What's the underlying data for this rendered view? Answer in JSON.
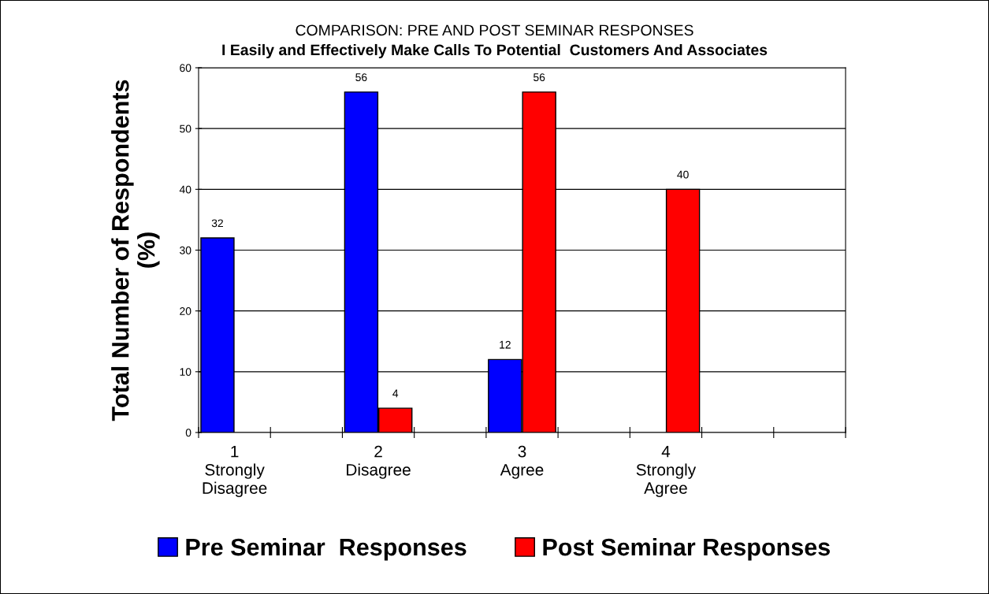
{
  "chart_data": {
    "type": "bar",
    "title": "COMPARISON: PRE AND POST SEMINAR RESPONSES",
    "subtitle": "I Easily and Effectively Make Calls To Potential  Customers And Associates",
    "ylabel": "Total Number of Respondents\n(%)",
    "categories": [
      "1\nStrongly\nDisagree",
      null,
      "2\nDisagree",
      null,
      "3\nAgree",
      null,
      "4\nStrongly\nAgree",
      null,
      null
    ],
    "series": [
      {
        "name": "Pre Seminar  Responses",
        "color": "#0000ff",
        "values": [
          32,
          null,
          56,
          null,
          12,
          null,
          null,
          null,
          null
        ]
      },
      {
        "name": "Post Seminar Responses",
        "color": "#ff0000",
        "values": [
          null,
          null,
          4,
          null,
          56,
          null,
          40,
          null,
          null
        ]
      }
    ],
    "ylim": [
      0,
      60
    ],
    "yticks": [
      0,
      10,
      20,
      30,
      40,
      50,
      60
    ],
    "grid": "y",
    "legend": "bottom",
    "data_labels": true
  }
}
